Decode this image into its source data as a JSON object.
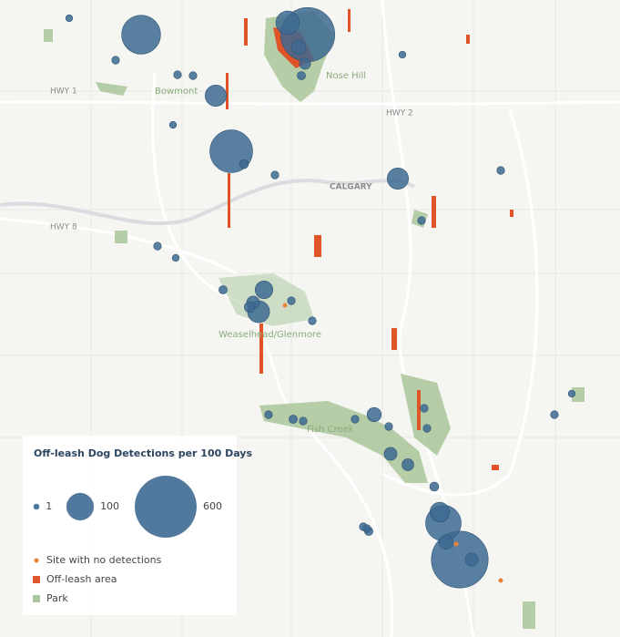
{
  "map": {
    "labels": [
      "HWY 1",
      "Bowmont",
      "Nose Hill",
      "HWY 2",
      "CALGARY",
      "HWY 8",
      "Weaselhead/Glenmore",
      "Fish Creek"
    ],
    "detections": [
      220,
      450,
      70,
      20,
      10,
      4,
      55,
      270,
      55,
      35,
      15,
      60,
      8,
      20,
      15,
      12,
      180,
      45,
      20,
      500,
      15,
      4,
      3,
      3,
      3,
      4,
      3,
      3,
      3,
      3,
      5,
      3,
      2,
      2,
      3,
      3,
      3,
      3,
      3,
      2,
      3,
      4,
      3,
      3,
      5,
      3,
      2,
      2,
      3,
      0,
      0,
      0
    ],
    "bubble_color": "#3d6a92",
    "no_detection_color": "#e9833a",
    "legend": {
      "title": "Off-leash Dog Detections per 100 Days",
      "sizes": [
        1,
        100,
        600
      ],
      "items": [
        {
          "label": "Site with no detections",
          "color": "#e9833a"
        },
        {
          "label": "Off-leash area",
          "color": "#e0542a"
        },
        {
          "label": "Park",
          "color": "#a9c79a"
        }
      ]
    }
  }
}
